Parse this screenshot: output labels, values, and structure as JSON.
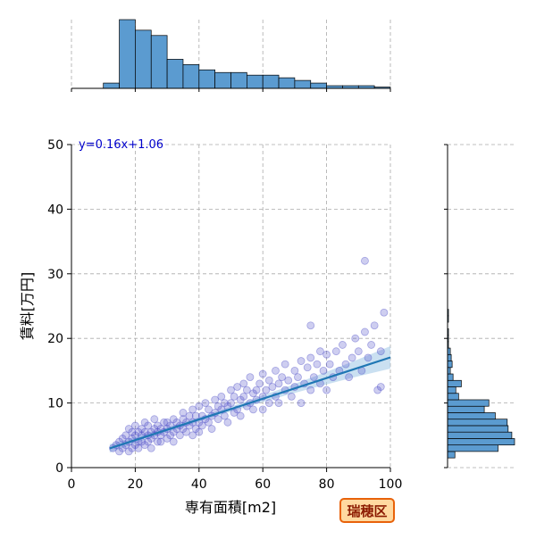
{
  "chart_data": {
    "type": "scatter",
    "xlabel": "専有面積[m2]",
    "ylabel": "賃料[万円]",
    "xlim": [
      0,
      100
    ],
    "ylim": [
      0,
      50
    ],
    "x_ticks": [
      0,
      20,
      40,
      60,
      80,
      100
    ],
    "y_ticks": [
      0,
      10,
      20,
      30,
      40,
      50
    ],
    "grid": true,
    "annotation": "y=0.16x+1.06",
    "badge": "瑞穂区",
    "regression": {
      "slope": 0.16,
      "intercept": 1.06,
      "x_range": [
        12,
        100
      ]
    },
    "colors": {
      "points": "#5050c8",
      "regression_line": "#1f77b4",
      "confidence_band": "#a6cbe8",
      "histogram": "#5b9bd0",
      "badge_fill": "#ffd9a0",
      "badge_border": "#e8620a",
      "badge_text": "#8b1a00",
      "annotation_text": "#0000cc"
    },
    "x_histogram": {
      "bin_edges": [
        10,
        15,
        20,
        25,
        30,
        35,
        40,
        45,
        50,
        55,
        60,
        65,
        70,
        75,
        80,
        85,
        90,
        95,
        100
      ],
      "counts": [
        2,
        26,
        22,
        20,
        11,
        9,
        7,
        6,
        6,
        5,
        5,
        4,
        3,
        2,
        1,
        1,
        1,
        0.5
      ]
    },
    "y_histogram": {
      "bin_edges": [
        1.5,
        2.5,
        3.5,
        4.5,
        5.5,
        6.5,
        7.5,
        8.5,
        9.5,
        10.5,
        11.5,
        12.5,
        13.5,
        14.5,
        15.5,
        16.5,
        17.5,
        18.5,
        19.5,
        20.5,
        21.5,
        22.5,
        23.5,
        24.5
      ],
      "counts": [
        8,
        55,
        73,
        70,
        66,
        65,
        52,
        40,
        45,
        12,
        9,
        15,
        6,
        3,
        5,
        4,
        3,
        1,
        1,
        1,
        0,
        1,
        1
      ]
    },
    "points": [
      [
        13,
        3
      ],
      [
        14,
        3.5
      ],
      [
        15,
        2.5
      ],
      [
        15,
        4
      ],
      [
        16,
        3
      ],
      [
        16,
        4.5
      ],
      [
        17,
        3.5
      ],
      [
        17,
        5
      ],
      [
        18,
        2.5
      ],
      [
        18,
        4
      ],
      [
        18,
        6
      ],
      [
        19,
        3
      ],
      [
        19,
        4.5
      ],
      [
        19,
        5.5
      ],
      [
        20,
        3.5
      ],
      [
        20,
        5
      ],
      [
        20,
        6.5
      ],
      [
        21,
        3
      ],
      [
        21,
        4
      ],
      [
        21,
        5.5
      ],
      [
        22,
        4
      ],
      [
        22,
        5
      ],
      [
        22,
        6
      ],
      [
        23,
        3.5
      ],
      [
        23,
        5.5
      ],
      [
        23,
        7
      ],
      [
        24,
        4
      ],
      [
        24,
        5
      ],
      [
        24,
        6.5
      ],
      [
        25,
        4.5
      ],
      [
        25,
        5.5
      ],
      [
        25,
        3
      ],
      [
        26,
        5
      ],
      [
        26,
        6
      ],
      [
        26,
        7.5
      ],
      [
        27,
        4
      ],
      [
        27,
        5.5
      ],
      [
        27,
        6.5
      ],
      [
        28,
        5
      ],
      [
        28,
        6
      ],
      [
        28,
        4
      ],
      [
        29,
        5.5
      ],
      [
        29,
        7
      ],
      [
        30,
        4.5
      ],
      [
        30,
        6
      ],
      [
        30,
        7
      ],
      [
        31,
        5
      ],
      [
        31,
        6.5
      ],
      [
        32,
        5.5
      ],
      [
        32,
        7.5
      ],
      [
        32,
        4
      ],
      [
        33,
        6
      ],
      [
        33,
        7
      ],
      [
        34,
        5
      ],
      [
        34,
        6.5
      ],
      [
        35,
        6
      ],
      [
        35,
        7.5
      ],
      [
        35,
        8.5
      ],
      [
        36,
        5.5
      ],
      [
        36,
        7
      ],
      [
        37,
        6.5
      ],
      [
        37,
        8
      ],
      [
        38,
        5
      ],
      [
        38,
        7
      ],
      [
        38,
        9
      ],
      [
        39,
        6
      ],
      [
        39,
        8
      ],
      [
        40,
        7
      ],
      [
        40,
        9.5
      ],
      [
        40,
        5.5
      ],
      [
        41,
        8
      ],
      [
        41,
        6.5
      ],
      [
        42,
        7.5
      ],
      [
        42,
        10
      ],
      [
        43,
        7
      ],
      [
        43,
        9
      ],
      [
        44,
        8
      ],
      [
        44,
        6
      ],
      [
        45,
        8.5
      ],
      [
        45,
        10.5
      ],
      [
        46,
        7.5
      ],
      [
        46,
        9.5
      ],
      [
        47,
        9
      ],
      [
        47,
        11
      ],
      [
        48,
        8
      ],
      [
        48,
        10
      ],
      [
        49,
        9.5
      ],
      [
        49,
        7
      ],
      [
        50,
        10
      ],
      [
        50,
        12
      ],
      [
        51,
        8.5
      ],
      [
        51,
        11
      ],
      [
        52,
        9
      ],
      [
        52,
        12.5
      ],
      [
        53,
        10.5
      ],
      [
        53,
        8
      ],
      [
        54,
        11
      ],
      [
        54,
        13
      ],
      [
        55,
        9.5
      ],
      [
        55,
        12
      ],
      [
        56,
        10
      ],
      [
        56,
        14
      ],
      [
        57,
        11.5
      ],
      [
        57,
        9
      ],
      [
        58,
        12
      ],
      [
        58,
        10.5
      ],
      [
        59,
        13
      ],
      [
        60,
        11
      ],
      [
        60,
        14.5
      ],
      [
        60,
        9
      ],
      [
        61,
        12
      ],
      [
        62,
        10
      ],
      [
        62,
        13.5
      ],
      [
        63,
        12.5
      ],
      [
        64,
        11
      ],
      [
        64,
        15
      ],
      [
        65,
        13
      ],
      [
        65,
        10
      ],
      [
        66,
        14
      ],
      [
        67,
        12
      ],
      [
        67,
        16
      ],
      [
        68,
        13.5
      ],
      [
        69,
        11
      ],
      [
        70,
        15
      ],
      [
        70,
        12.5
      ],
      [
        71,
        14
      ],
      [
        72,
        16.5
      ],
      [
        72,
        10
      ],
      [
        73,
        13
      ],
      [
        74,
        15.5
      ],
      [
        75,
        12
      ],
      [
        75,
        17
      ],
      [
        76,
        14
      ],
      [
        77,
        16
      ],
      [
        78,
        13
      ],
      [
        78,
        18
      ],
      [
        79,
        15
      ],
      [
        80,
        12
      ],
      [
        80,
        17.5
      ],
      [
        81,
        16
      ],
      [
        82,
        14
      ],
      [
        83,
        18
      ],
      [
        84,
        15
      ],
      [
        85,
        19
      ],
      [
        86,
        16
      ],
      [
        87,
        14
      ],
      [
        88,
        17
      ],
      [
        89,
        20
      ],
      [
        90,
        18
      ],
      [
        91,
        15
      ],
      [
        92,
        32
      ],
      [
        92,
        21
      ],
      [
        93,
        17
      ],
      [
        94,
        19
      ],
      [
        95,
        22
      ],
      [
        96,
        12
      ],
      [
        97,
        18
      ],
      [
        98,
        24
      ],
      [
        75,
        22
      ],
      [
        97,
        12.5
      ]
    ]
  }
}
